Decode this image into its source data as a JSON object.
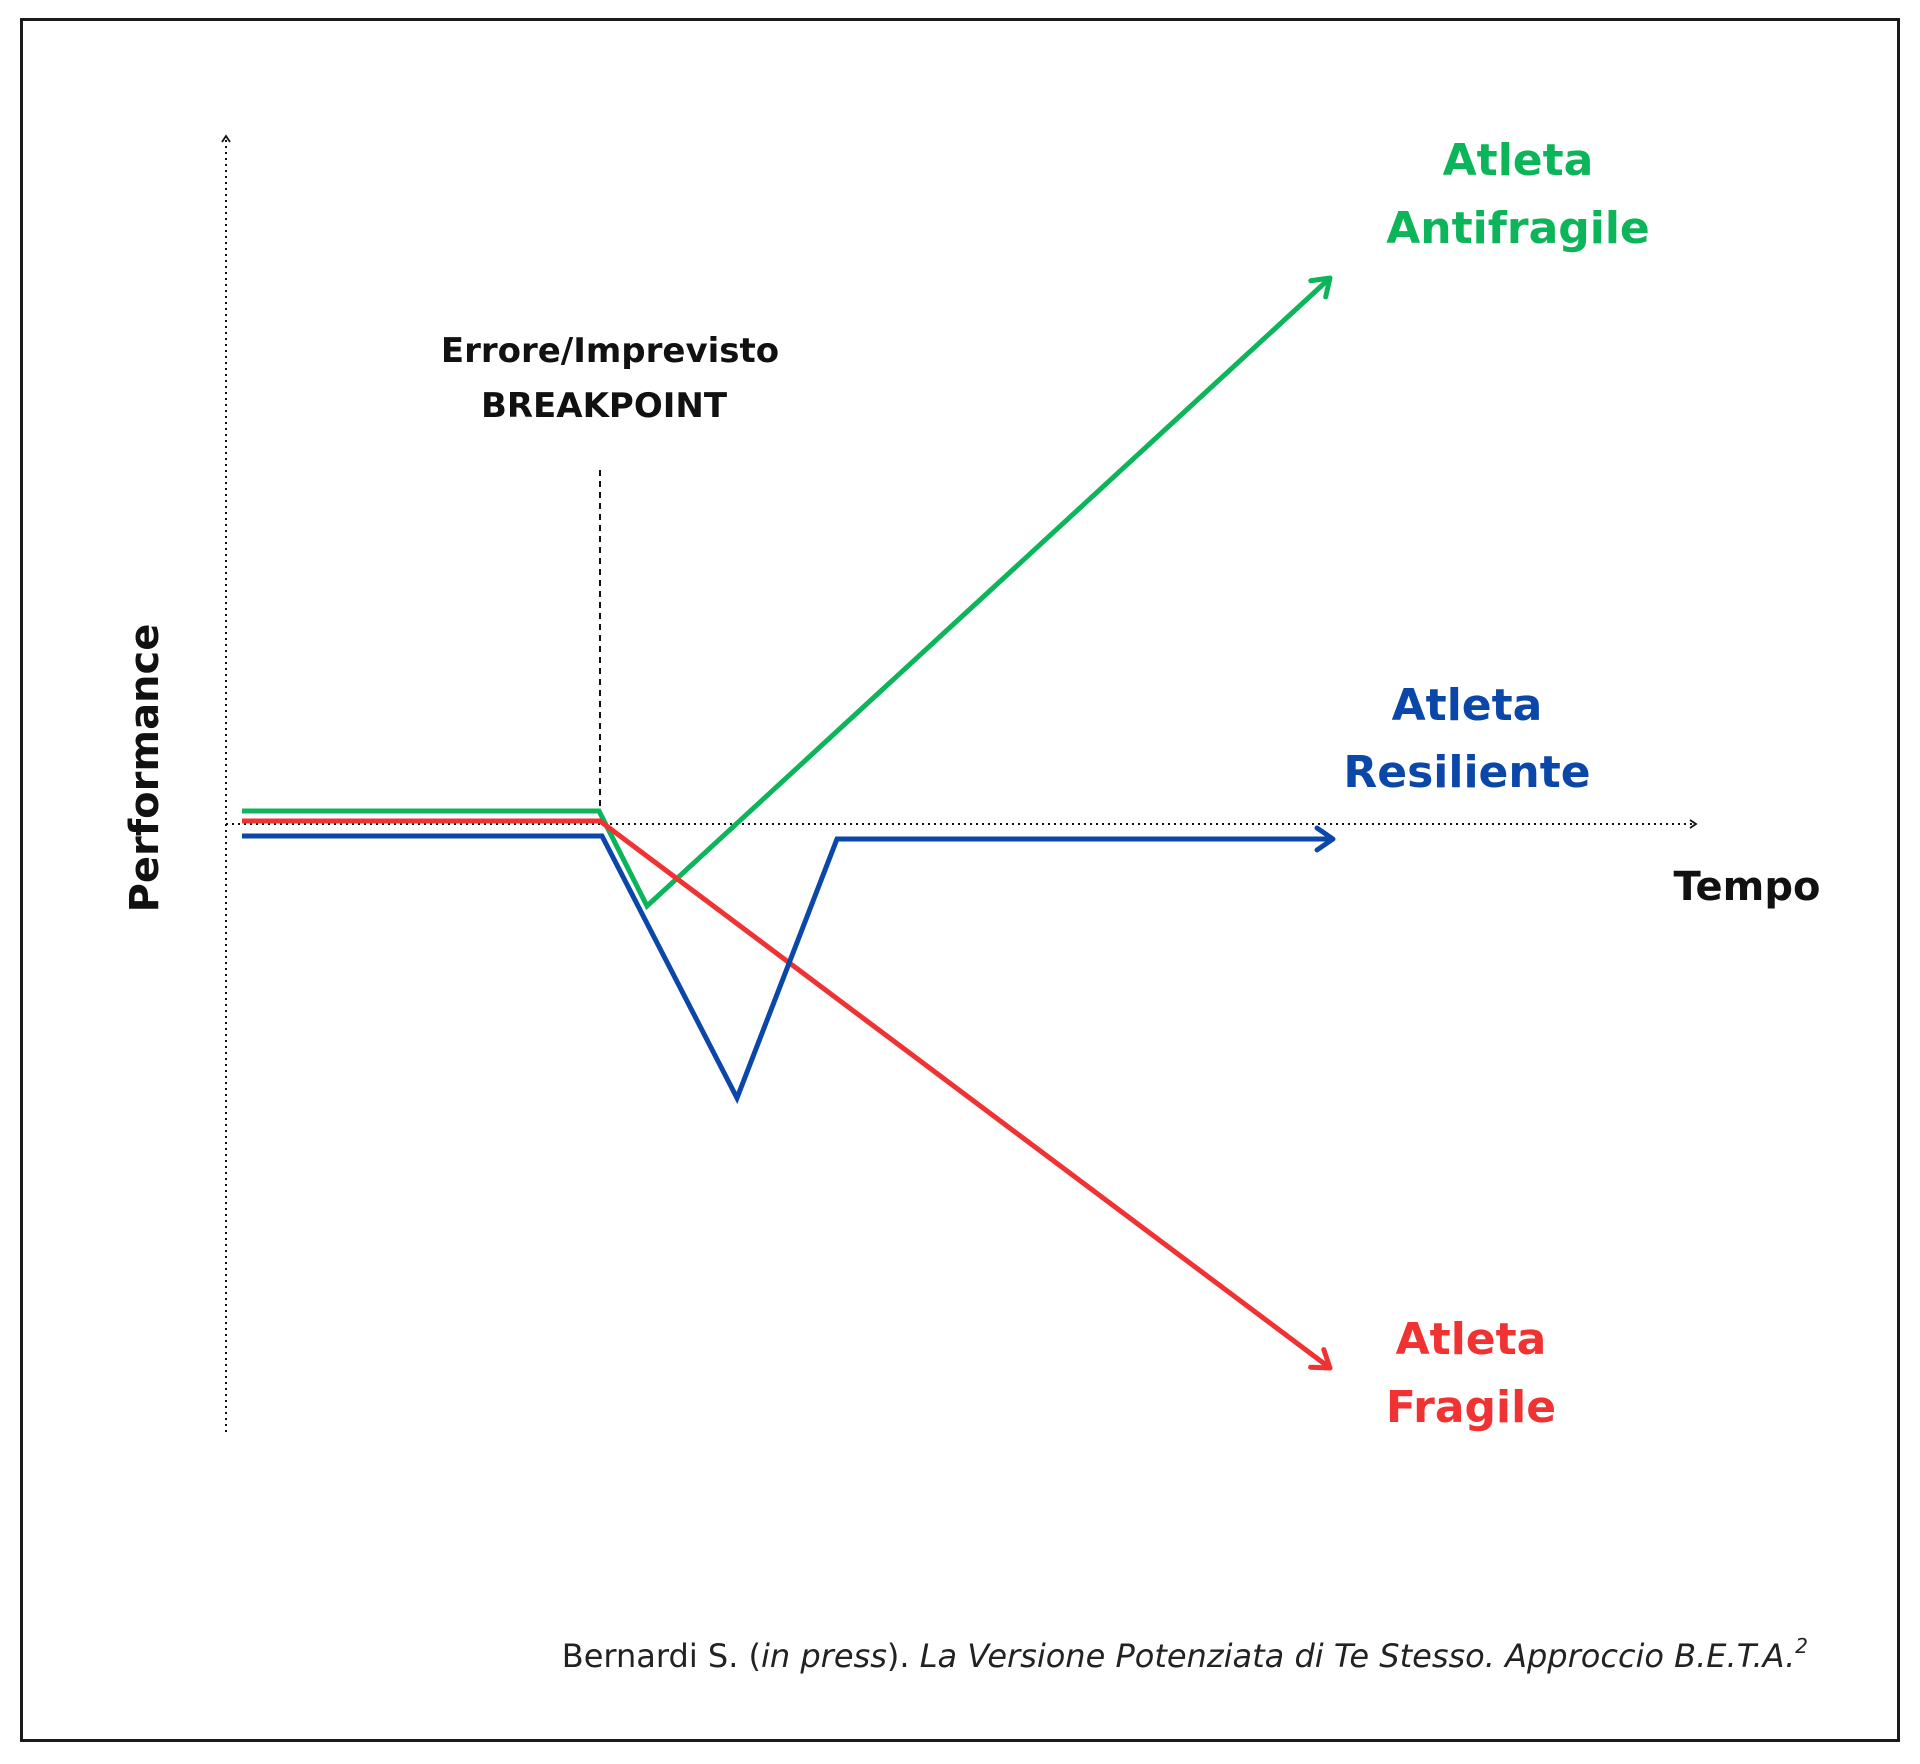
{
  "axes": {
    "y_label": "Performance",
    "x_label": "Tempo"
  },
  "breakpoint": {
    "line1": "Errore/Imprevisto",
    "line2": "BREAKPOINT"
  },
  "curves": {
    "antifragile": {
      "line1": "Atleta",
      "line2": "Antifragile",
      "color": "#0db55a"
    },
    "resiliente": {
      "line1": "Atleta",
      "line2": "Resiliente",
      "color": "#0a47a8"
    },
    "fragile": {
      "line1": "Atleta",
      "line2": "Fragile",
      "color": "#f03232"
    }
  },
  "citation": {
    "author": "Bernardi S. (",
    "in_press": "in press",
    "after": "). ",
    "title": "La Versione Potenziata di Te Stesso. Approccio B.E.T.A.",
    "sup": "2"
  }
}
